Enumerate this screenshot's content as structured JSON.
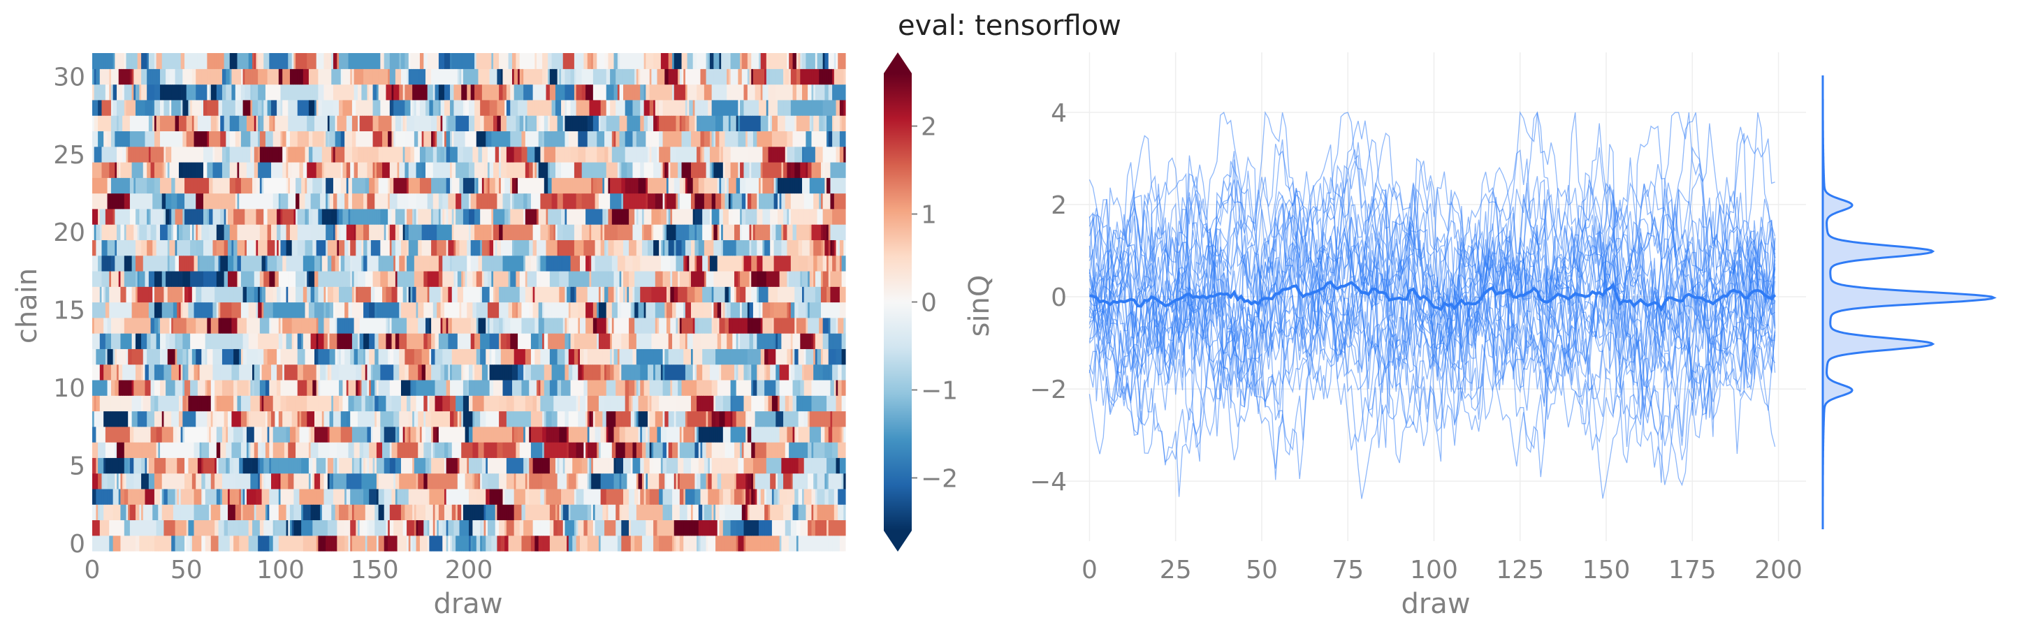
{
  "title": "eval: tensorflow",
  "chart_data": [
    {
      "type": "heatmap",
      "xlabel": "draw",
      "ylabel": "chain",
      "x_ticks": [
        "0",
        "50",
        "100",
        "150",
        "200"
      ],
      "y_ticks": [
        "0",
        "5",
        "10",
        "15",
        "20",
        "25",
        "30"
      ],
      "n_draws": 400,
      "n_chains": 32,
      "xlim": [
        0,
        400
      ],
      "ylim": [
        0,
        32
      ],
      "colormap": "RdBu_r",
      "colorbar": {
        "label": "sinQ",
        "ticks": [
          "−2",
          "−1",
          "0",
          "1",
          "2"
        ],
        "range": [
          -2.6,
          2.6
        ],
        "extend": "both"
      }
    },
    {
      "type": "line",
      "xlabel": "draw",
      "ylabel": "",
      "x_ticks": [
        "0",
        "25",
        "50",
        "75",
        "100",
        "125",
        "150",
        "175",
        "200"
      ],
      "y_ticks": [
        "−4",
        "−2",
        "0",
        "2",
        "4"
      ],
      "xlim": [
        -8,
        208
      ],
      "ylim": [
        -5.3,
        5.3
      ],
      "n_chains": 32,
      "n_draws": 200,
      "series_color": "#2f7bf5",
      "grid": true,
      "mean_line": true,
      "marginal_kde": {
        "peaks": [
          -2.0,
          -1.0,
          0.0,
          1.0,
          2.0
        ],
        "fill_color": "#cfdffb",
        "line_color": "#2f7bf5"
      }
    }
  ]
}
